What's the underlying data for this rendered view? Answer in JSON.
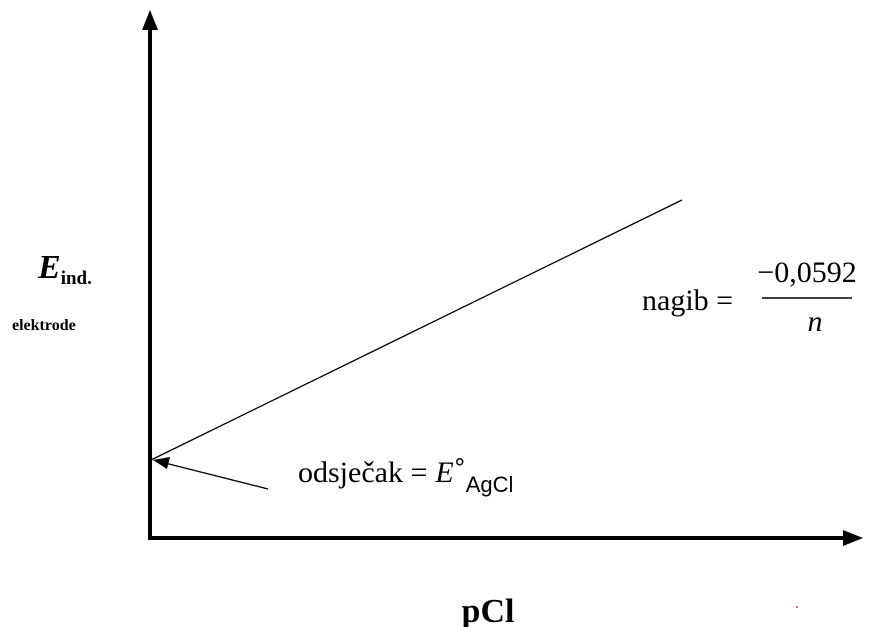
{
  "y_axis": {
    "symbol": "E",
    "subscript": "ind.",
    "electrode_label": "elektrode"
  },
  "x_axis": {
    "label": "pCl"
  },
  "slope": {
    "label": "nagib =",
    "numerator": "−0,0592",
    "denominator": "n"
  },
  "intercept": {
    "label": "odsječak =",
    "symbol": "E",
    "degree": "°",
    "subscript": "AgCl"
  }
}
